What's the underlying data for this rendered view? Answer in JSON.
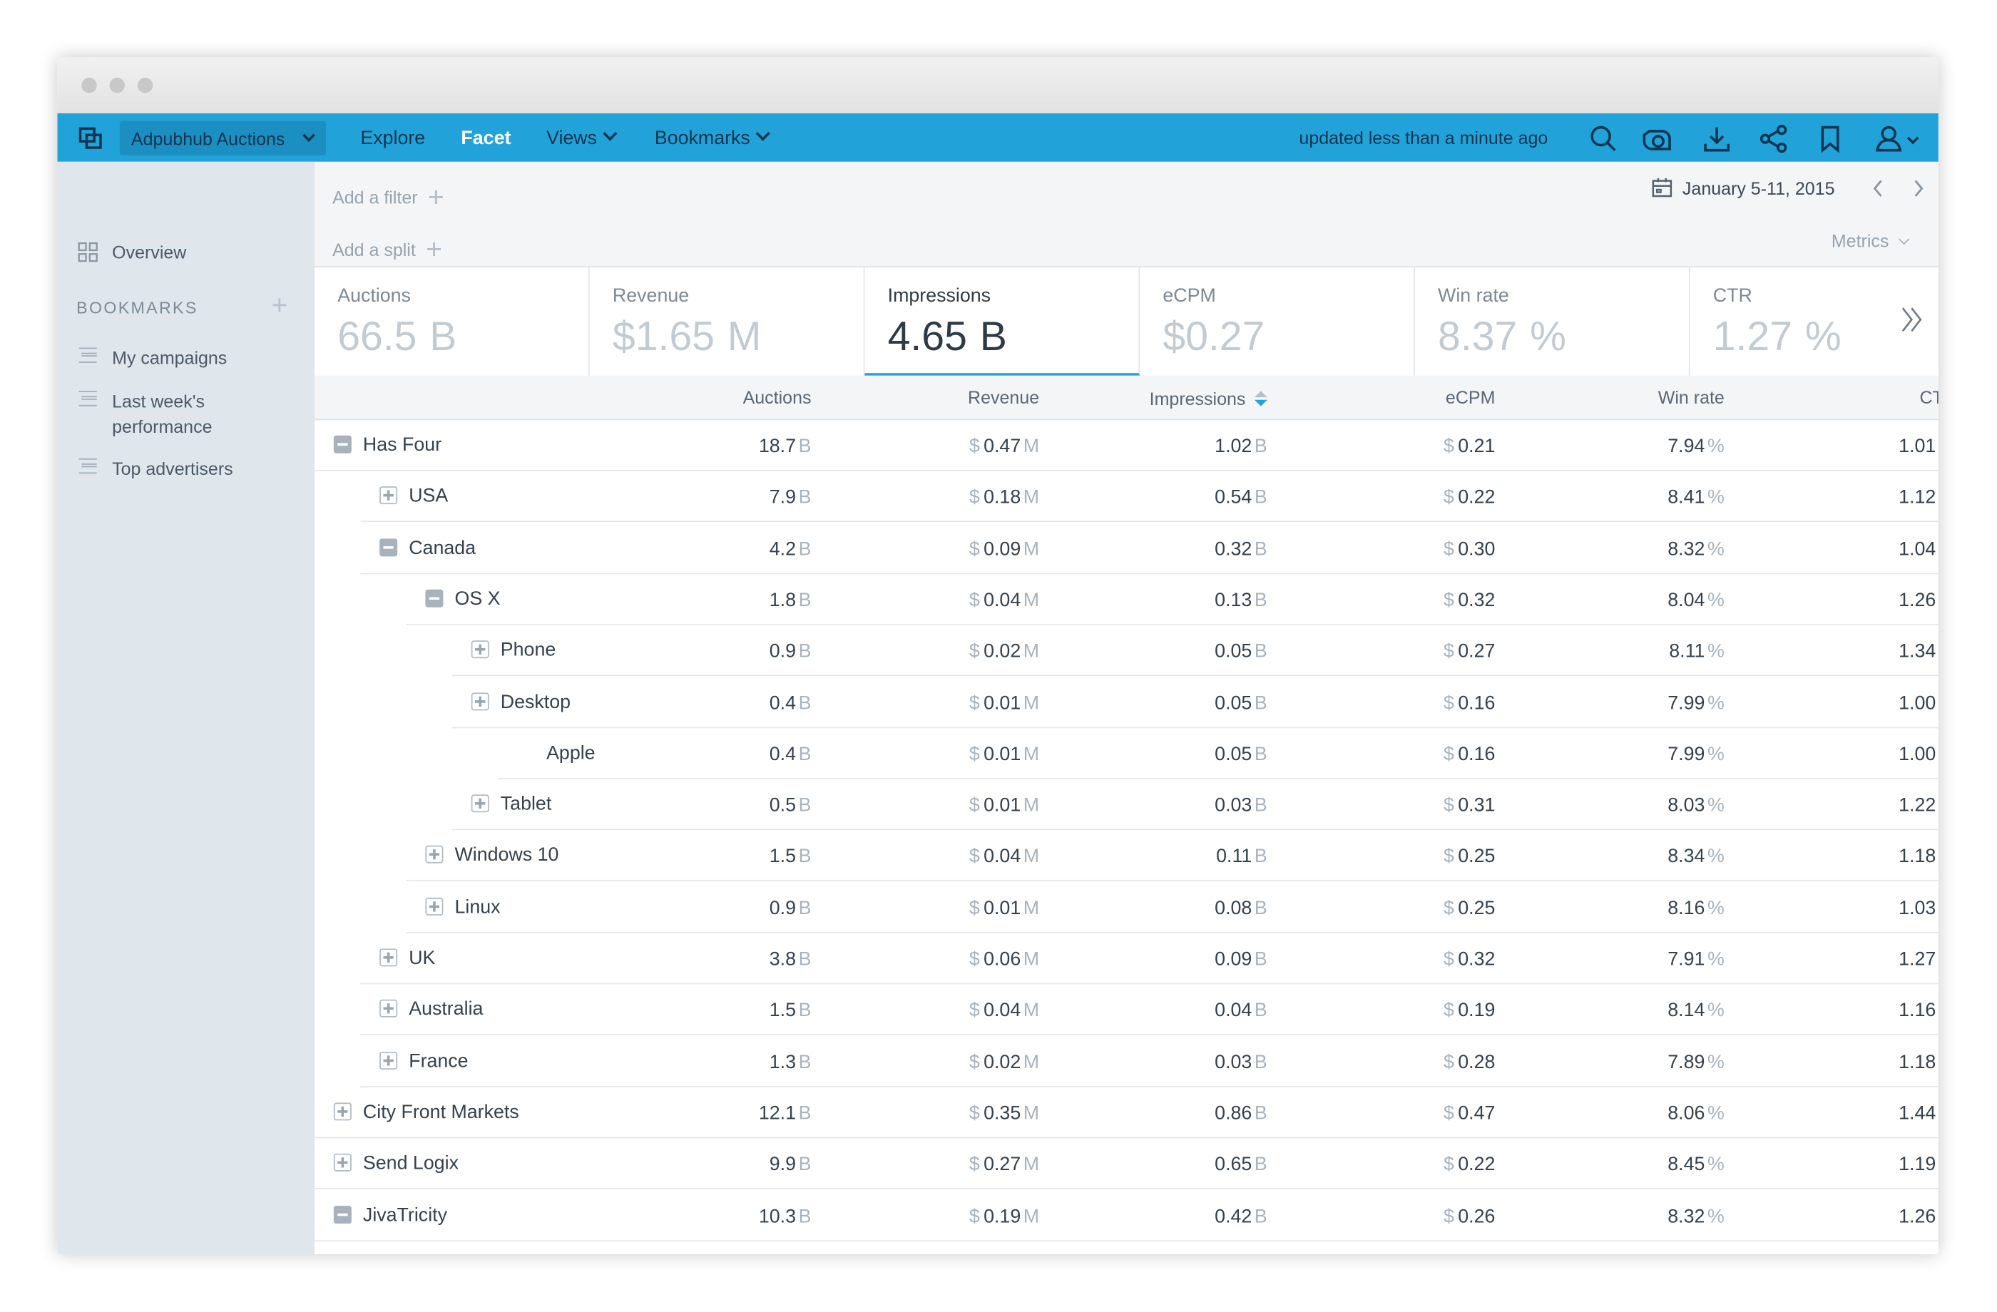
{
  "app": {
    "name": "Adpubhub Auctions",
    "nav": [
      "Explore",
      "Facet",
      "Views",
      "Bookmarks"
    ],
    "status": "updated less than a minute ago"
  },
  "sidebar": {
    "overview": "Overview",
    "bookmarks_title": "BOOKMARKS",
    "bookmarks": [
      "My campaigns",
      "Last week's performance",
      "Top advertisers"
    ]
  },
  "toolbar": {
    "filter": "Add a filter",
    "split": "Add a split",
    "date": "January 5-11, 2015",
    "metrics": "Metrics"
  },
  "metrics": [
    {
      "label": "Auctions",
      "value": "66.5",
      "suffix": "B"
    },
    {
      "label": "Revenue",
      "prefix": "$",
      "value": "1.65",
      "suffix": "M"
    },
    {
      "label": "Impressions",
      "value": "4.65",
      "suffix": "B",
      "selected": true
    },
    {
      "label": "eCPM",
      "prefix": "$",
      "value": "0.27"
    },
    {
      "label": "Win rate",
      "value": "8.37",
      "suffix": "%"
    },
    {
      "label": "CTR",
      "value": "1.27",
      "suffix": "%"
    }
  ],
  "table": {
    "columns": [
      {
        "name": "Auctions",
        "suffix": "B"
      },
      {
        "name": "Revenue",
        "prefix": "$",
        "suffix": "M"
      },
      {
        "name": "Impressions",
        "suffix": "B",
        "sorted": true
      },
      {
        "name": "eCPM",
        "prefix": "$"
      },
      {
        "name": "Win rate",
        "suffix": "%"
      },
      {
        "name": "CTR"
      }
    ],
    "rows": [
      {
        "label": "Has Four",
        "level": 0,
        "expanded": true,
        "values": [
          "18.7",
          "0.47",
          "1.02",
          "0.21",
          "7.94",
          "1.01"
        ]
      },
      {
        "label": "USA",
        "level": 1,
        "expanded": false,
        "values": [
          "7.9",
          "0.18",
          "0.54",
          "0.22",
          "8.41",
          "1.12"
        ]
      },
      {
        "label": "Canada",
        "level": 1,
        "expanded": true,
        "values": [
          "4.2",
          "0.09",
          "0.32",
          "0.30",
          "8.32",
          "1.04"
        ]
      },
      {
        "label": "OS X",
        "level": 2,
        "expanded": true,
        "values": [
          "1.8",
          "0.04",
          "0.13",
          "0.32",
          "8.04",
          "1.26"
        ]
      },
      {
        "label": "Phone",
        "level": 3,
        "expanded": false,
        "values": [
          "0.9",
          "0.02",
          "0.05",
          "0.27",
          "8.11",
          "1.34"
        ]
      },
      {
        "label": "Desktop",
        "level": 3,
        "expanded": false,
        "values": [
          "0.4",
          "0.01",
          "0.05",
          "0.16",
          "7.99",
          "1.00"
        ]
      },
      {
        "label": "Apple",
        "level": 4,
        "values": [
          "0.4",
          "0.01",
          "0.05",
          "0.16",
          "7.99",
          "1.00"
        ]
      },
      {
        "label": "Tablet",
        "level": 3,
        "expanded": false,
        "values": [
          "0.5",
          "0.01",
          "0.03",
          "0.31",
          "8.03",
          "1.22"
        ]
      },
      {
        "label": "Windows 10",
        "level": 2,
        "expanded": false,
        "values": [
          "1.5",
          "0.04",
          "0.11",
          "0.25",
          "8.34",
          "1.18"
        ]
      },
      {
        "label": "Linux",
        "level": 2,
        "expanded": false,
        "values": [
          "0.9",
          "0.01",
          "0.08",
          "0.25",
          "8.16",
          "1.03"
        ]
      },
      {
        "label": "UK",
        "level": 1,
        "expanded": false,
        "values": [
          "3.8",
          "0.06",
          "0.09",
          "0.32",
          "7.91",
          "1.27"
        ]
      },
      {
        "label": "Australia",
        "level": 1,
        "expanded": false,
        "values": [
          "1.5",
          "0.04",
          "0.04",
          "0.19",
          "8.14",
          "1.16"
        ]
      },
      {
        "label": "France",
        "level": 1,
        "expanded": false,
        "values": [
          "1.3",
          "0.02",
          "0.03",
          "0.28",
          "7.89",
          "1.18"
        ]
      },
      {
        "label": "City Front Markets",
        "level": 0,
        "expanded": false,
        "values": [
          "12.1",
          "0.35",
          "0.86",
          "0.47",
          "8.06",
          "1.44"
        ]
      },
      {
        "label": "Send Logix",
        "level": 0,
        "expanded": false,
        "values": [
          "9.9",
          "0.27",
          "0.65",
          "0.22",
          "8.45",
          "1.19"
        ]
      },
      {
        "label": "JivaTricity",
        "level": 0,
        "expanded": true,
        "values": [
          "10.3",
          "0.19",
          "0.42",
          "0.26",
          "8.32",
          "1.26"
        ]
      }
    ]
  }
}
